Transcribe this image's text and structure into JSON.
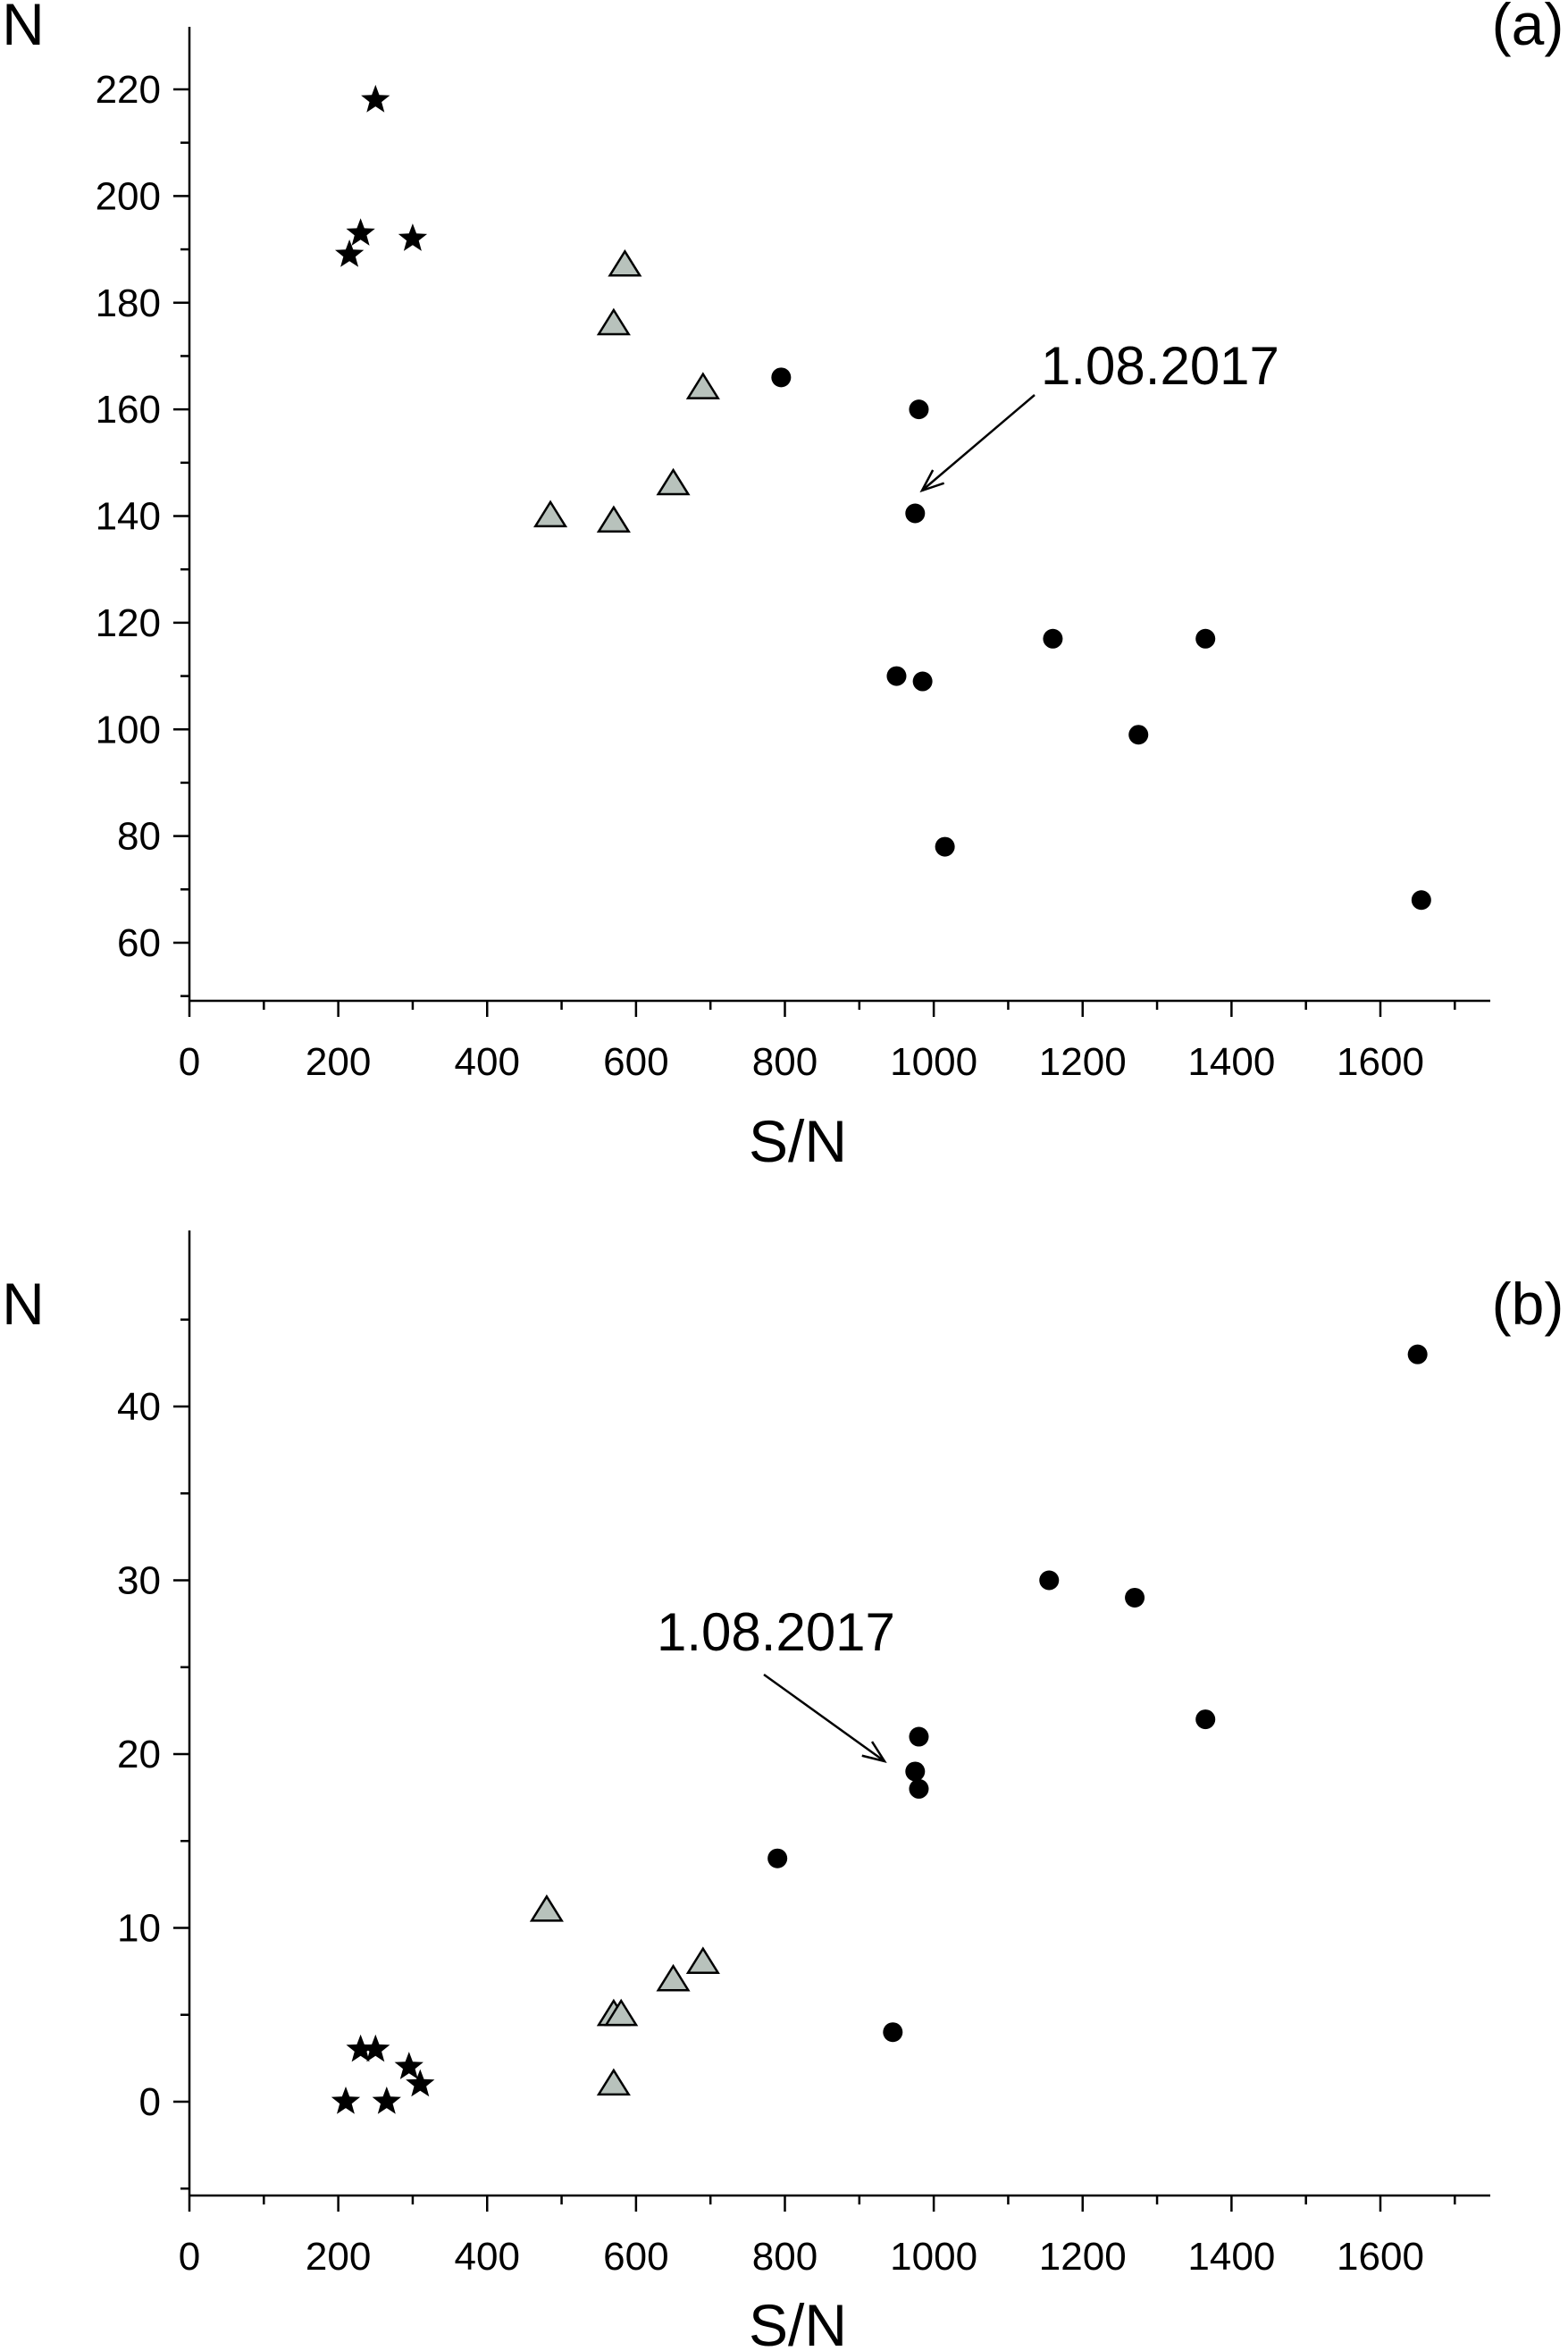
{
  "chart_data": [
    {
      "type": "scatter",
      "panel_label": "(a)",
      "xlabel": "S/N",
      "ylabel": "N",
      "xlim": [
        0,
        1780
      ],
      "ylim": [
        49,
        228
      ],
      "x_ticks": [
        0,
        200,
        400,
        600,
        800,
        1000,
        1200,
        1400,
        1600
      ],
      "y_ticks": [
        60,
        80,
        100,
        120,
        140,
        160,
        180,
        200,
        220
      ],
      "grid": false,
      "series": [
        {
          "marker": "star",
          "color": "#000000",
          "points": [
            [
              250,
              218
            ],
            [
              230,
              193
            ],
            [
              215,
              189
            ],
            [
              300,
              192
            ]
          ]
        },
        {
          "marker": "triangle",
          "color": "#b8c2bc",
          "points": [
            [
              585,
              187
            ],
            [
              570,
              176
            ],
            [
              690,
              164
            ],
            [
              650,
              146
            ],
            [
              485,
              140
            ],
            [
              570,
              139
            ]
          ]
        },
        {
          "marker": "circle",
          "color": "#000000",
          "points": [
            [
              795,
              166
            ],
            [
              980,
              160
            ],
            [
              975,
              140.5
            ],
            [
              950,
              110
            ],
            [
              985,
              109
            ],
            [
              1160,
              117
            ],
            [
              1365,
              117
            ],
            [
              1275,
              99
            ],
            [
              1015,
              78
            ],
            [
              1655,
              68
            ]
          ]
        }
      ],
      "annotation": {
        "text": "1.08.2017",
        "target": [
          980,
          142
        ]
      }
    },
    {
      "type": "scatter",
      "panel_label": "(b)",
      "xlabel": "S/N",
      "ylabel": "N",
      "xlim": [
        0,
        1780
      ],
      "ylim": [
        -5,
        49.5
      ],
      "x_ticks": [
        0,
        200,
        400,
        600,
        800,
        1000,
        1200,
        1400,
        1600
      ],
      "y_ticks": [
        0,
        10,
        20,
        30,
        40
      ],
      "grid": false,
      "series": [
        {
          "marker": "star",
          "color": "#000000",
          "points": [
            [
              230,
              3
            ],
            [
              250,
              3
            ],
            [
              295,
              2
            ],
            [
              310,
              1
            ],
            [
              210,
              0
            ],
            [
              265,
              0
            ]
          ]
        },
        {
          "marker": "triangle",
          "color": "#b8c2bc",
          "points": [
            [
              480,
              11
            ],
            [
              570,
              5
            ],
            [
              580,
              5
            ],
            [
              650,
              7
            ],
            [
              690,
              8
            ],
            [
              570,
              1
            ]
          ]
        },
        {
          "marker": "circle",
          "color": "#000000",
          "points": [
            [
              1650,
              43
            ],
            [
              1155,
              30
            ],
            [
              1270,
              29
            ],
            [
              1365,
              22
            ],
            [
              980,
              21
            ],
            [
              975,
              19
            ],
            [
              980,
              18
            ],
            [
              790,
              14
            ],
            [
              945,
              4
            ]
          ]
        }
      ],
      "annotation": {
        "text": "1.08.2017",
        "target": [
          955,
          20
        ]
      }
    }
  ]
}
